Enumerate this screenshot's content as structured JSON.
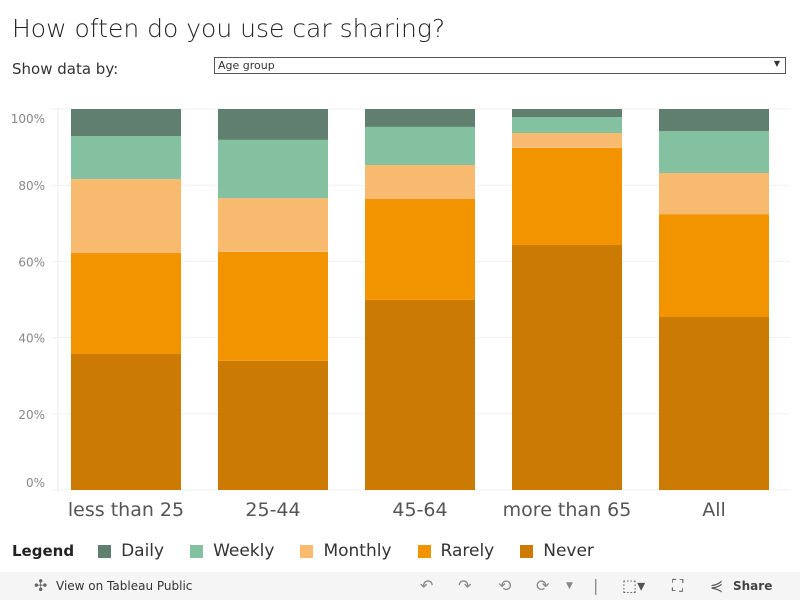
{
  "title": "How often do you use car sharing?",
  "filter": {
    "label": "Show data by:",
    "value": "Age group"
  },
  "chart_data": {
    "type": "bar",
    "stacked": true,
    "title": "How often do you use car sharing?",
    "categories": [
      "less than 25",
      "25-44",
      "45-64",
      "more than 65",
      "All"
    ],
    "yticks": [
      "0%",
      "20%",
      "40%",
      "60%",
      "80%",
      "100%"
    ],
    "ylim": [
      0,
      100
    ],
    "grid": true,
    "series": [
      {
        "name": "Never",
        "color": "#cb7a03",
        "values": [
          35.7,
          33.9,
          49.9,
          64.3,
          45.4
        ]
      },
      {
        "name": "Rarely",
        "color": "#f29300",
        "values": [
          26.5,
          28.6,
          26.5,
          25.5,
          27.0
        ]
      },
      {
        "name": "Monthly",
        "color": "#f8ba6f",
        "values": [
          19.4,
          14.1,
          8.9,
          3.9,
          10.8
        ]
      },
      {
        "name": "Weekly",
        "color": "#83c1a1",
        "values": [
          11.3,
          15.3,
          10.0,
          4.2,
          11.0
        ]
      },
      {
        "name": "Daily",
        "color": "#607f6f",
        "values": [
          7.1,
          8.1,
          4.7,
          2.1,
          5.8
        ]
      }
    ]
  },
  "legend": {
    "title": "Legend",
    "items": [
      "Daily",
      "Weekly",
      "Monthly",
      "Rarely",
      "Never"
    ]
  },
  "toolbar": {
    "view": "View on Tableau Public",
    "share": "Share"
  }
}
